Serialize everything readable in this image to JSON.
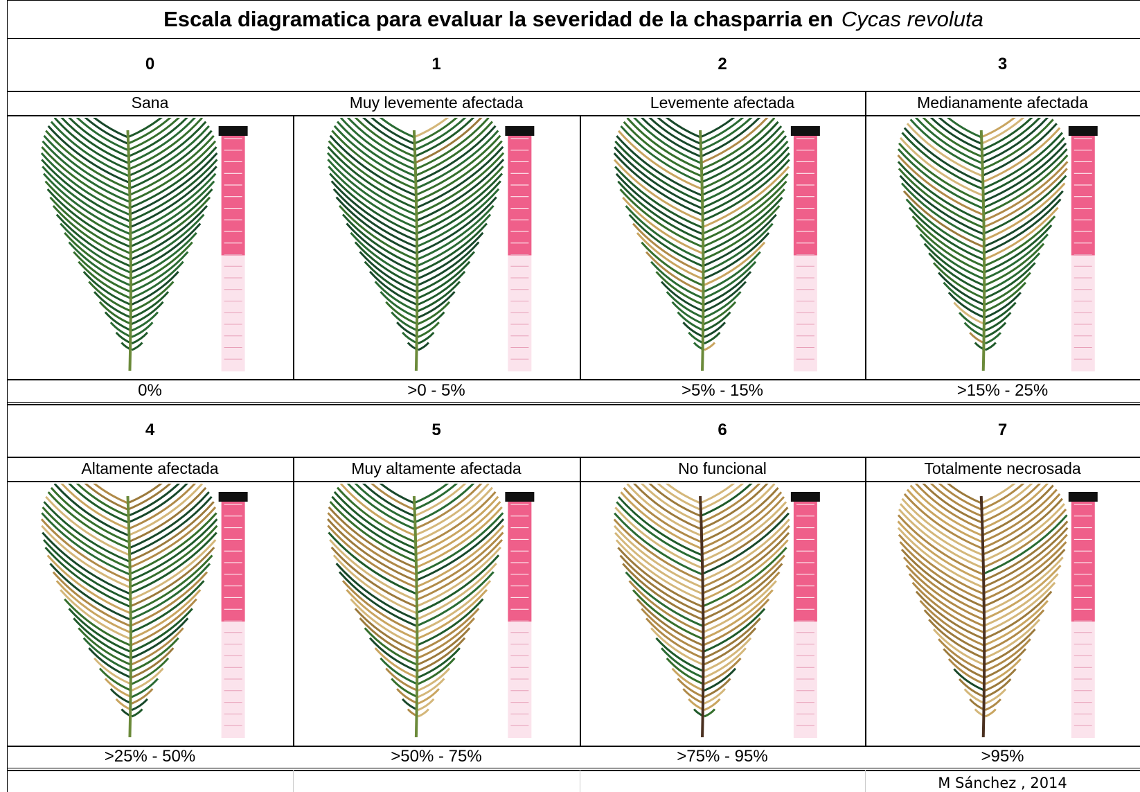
{
  "header": {
    "title": "Escala diagramatica para evaluar la severidad de la chasparria en",
    "species": "Cycas revoluta"
  },
  "levels": [
    {
      "score": 0,
      "label": "Sana",
      "severity": "0%"
    },
    {
      "score": 1,
      "label": "Muy levemente afectada",
      "severity": ">0 - 5%"
    },
    {
      "score": 2,
      "label": "Levemente afectada",
      "severity": ">5%  - 15%"
    },
    {
      "score": 3,
      "label": "Medianamente afectada",
      "severity": ">15% - 25%"
    },
    {
      "score": 4,
      "label": "Altamente afectada",
      "severity": ">25%  - 50%"
    },
    {
      "score": 5,
      "label": "Muy altamente afectada",
      "severity": ">50%  - 75%"
    },
    {
      "score": 6,
      "label": "No funcional",
      "severity": ">75% - 95%"
    },
    {
      "score": 7,
      "label": "Totalmente necrosada",
      "severity": ">95%"
    }
  ],
  "footer": {
    "credit": "M Sánchez , 2014"
  }
}
